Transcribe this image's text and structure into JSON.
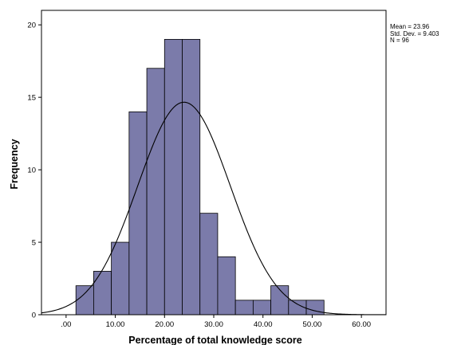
{
  "chart_data": {
    "type": "bar",
    "subtype": "histogram",
    "xlabel": "Percentage of total knowledge score",
    "ylabel": "Frequency",
    "xlim": [
      -5,
      65
    ],
    "ylim": [
      0,
      21
    ],
    "xticks": [
      0,
      10,
      20,
      30,
      40,
      50,
      60
    ],
    "xtick_labels": [
      ".00",
      "10.00",
      "20.00",
      "30.00",
      "40.00",
      "50.00",
      "60.00"
    ],
    "yticks": [
      0,
      5,
      10,
      15,
      20
    ],
    "ytick_labels": [
      "0",
      "5",
      "10",
      "15",
      "20"
    ],
    "bin_width": 3.6,
    "bins": [
      {
        "start": 2.0,
        "end": 5.6,
        "count": 2
      },
      {
        "start": 5.6,
        "end": 9.2,
        "count": 3
      },
      {
        "start": 9.2,
        "end": 12.8,
        "count": 5
      },
      {
        "start": 12.8,
        "end": 16.4,
        "count": 14
      },
      {
        "start": 16.4,
        "end": 20.0,
        "count": 17
      },
      {
        "start": 20.0,
        "end": 23.6,
        "count": 19
      },
      {
        "start": 23.6,
        "end": 27.2,
        "count": 19
      },
      {
        "start": 27.2,
        "end": 30.8,
        "count": 7
      },
      {
        "start": 30.8,
        "end": 34.4,
        "count": 4
      },
      {
        "start": 34.4,
        "end": 38.0,
        "count": 1
      },
      {
        "start": 38.0,
        "end": 41.6,
        "count": 1
      },
      {
        "start": 41.6,
        "end": 45.2,
        "count": 2
      },
      {
        "start": 45.2,
        "end": 48.8,
        "count": 1
      },
      {
        "start": 48.8,
        "end": 52.4,
        "count": 1
      }
    ],
    "normal_curve": {
      "mean": 23.96,
      "sd": 9.403,
      "n": 96
    },
    "bar_color": "#7b7baa",
    "bar_edge_color": "#000000",
    "plot_background": "#ffffff",
    "grid": false,
    "legend": "none"
  },
  "stats": {
    "mean_text": "Mean = 23.96",
    "sd_text": "Std. Dev. = 9.403",
    "n_text": "N = 96"
  }
}
